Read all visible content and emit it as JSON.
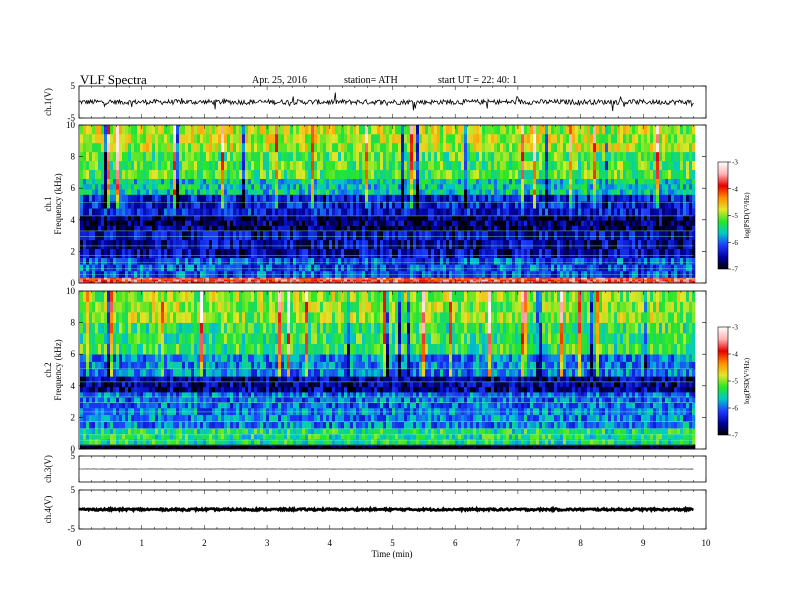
{
  "header": {
    "title": "VLF  Spectra",
    "date": "Apr. 25, 2016",
    "station": "station= ATH",
    "start": "start  UT  =    22: 40: 1"
  },
  "colors": {
    "spectrogram_scale": [
      "#000000",
      "#0000a0",
      "#1e3cff",
      "#00c8c8",
      "#28e628",
      "#e6e628",
      "#ff8c00",
      "#e60000",
      "#ffb4b4",
      "#ffffff"
    ]
  },
  "chart_data": [
    {
      "type": "line",
      "panel": "ch1-waveform",
      "ylabel": "ch.1(V)",
      "xlim": [
        0,
        10
      ],
      "ylim": [
        -5,
        5
      ],
      "yticks": [
        {
          "v": 5,
          "label": "5"
        },
        {
          "v": -5,
          "label": "-5"
        }
      ],
      "xdata_end": 9.8,
      "baseline": 0,
      "noise_amplitude": 0.8
    },
    {
      "type": "heatmap",
      "panel": "ch1-spectrogram",
      "ylabel": "ch.1\nFrequency  (kHz)",
      "xlim": [
        0,
        10
      ],
      "ylim": [
        0,
        10
      ],
      "yticks": [
        {
          "v": 0,
          "label": "0"
        },
        {
          "v": 2,
          "label": "2"
        },
        {
          "v": 4,
          "label": "4"
        },
        {
          "v": 6,
          "label": "6"
        },
        {
          "v": 8,
          "label": "8"
        },
        {
          "v": 10,
          "label": "10"
        }
      ],
      "xdata_end": 9.8,
      "colorbar": {
        "label": "log(PSD(V²/Hz)",
        "range": [
          -7,
          -3
        ],
        "ticks": [
          {
            "v": -3,
            "label": "-3"
          },
          {
            "v": -4,
            "label": "-4"
          },
          {
            "v": -5,
            "label": "-5"
          },
          {
            "v": -6,
            "label": "-6"
          },
          {
            "v": -7,
            "label": "-7"
          }
        ]
      },
      "bands_khz": [
        {
          "from": 0.0,
          "to": 0.35,
          "level": -3.8
        },
        {
          "from": 0.35,
          "to": 1.6,
          "level": -6.1
        },
        {
          "from": 1.6,
          "to": 3.3,
          "level": -6.5
        },
        {
          "from": 3.3,
          "to": 4.3,
          "level": -6.7
        },
        {
          "from": 4.3,
          "to": 5.6,
          "level": -6.3
        },
        {
          "from": 5.6,
          "to": 6.6,
          "level": -5.6
        },
        {
          "from": 6.6,
          "to": 8.3,
          "level": -5.2
        },
        {
          "from": 8.3,
          "to": 10.0,
          "level": -4.9
        }
      ]
    },
    {
      "type": "heatmap",
      "panel": "ch2-spectrogram",
      "ylabel": "ch.2\nFrequency  (kHz)",
      "xlim": [
        0,
        10
      ],
      "ylim": [
        0,
        10
      ],
      "yticks": [
        {
          "v": 0,
          "label": "0"
        },
        {
          "v": 2,
          "label": "2"
        },
        {
          "v": 4,
          "label": "4"
        },
        {
          "v": 6,
          "label": "6"
        },
        {
          "v": 8,
          "label": "8"
        },
        {
          "v": 10,
          "label": "10"
        }
      ],
      "xdata_end": 9.8,
      "colorbar": {
        "label": "log(PSD(V²/Hz)",
        "range": [
          -7,
          -3
        ],
        "ticks": [
          {
            "v": -3,
            "label": "-3"
          },
          {
            "v": -4,
            "label": "-4"
          },
          {
            "v": -5,
            "label": "-5"
          },
          {
            "v": -6,
            "label": "-6"
          },
          {
            "v": -7,
            "label": "-7"
          }
        ]
      },
      "bands_khz": [
        {
          "from": 0.0,
          "to": 0.3,
          "level": -7.0
        },
        {
          "from": 0.3,
          "to": 1.3,
          "level": -5.4
        },
        {
          "from": 1.3,
          "to": 2.6,
          "level": -5.9
        },
        {
          "from": 2.6,
          "to": 3.6,
          "level": -6.0
        },
        {
          "from": 3.6,
          "to": 4.6,
          "level": -6.6
        },
        {
          "from": 4.6,
          "to": 6.0,
          "level": -5.9
        },
        {
          "from": 6.0,
          "to": 8.0,
          "level": -5.3
        },
        {
          "from": 8.0,
          "to": 10.0,
          "level": -5.0
        }
      ]
    },
    {
      "type": "line",
      "panel": "ch3-waveform",
      "ylabel": "ch.3(V)",
      "xlim": [
        0,
        10
      ],
      "ylim": [
        -5,
        5
      ],
      "yticks": [
        {
          "v": 5,
          "label": "5"
        }
      ],
      "xdata_end": 9.8,
      "baseline": 0,
      "noise_amplitude": 0.05
    },
    {
      "type": "line",
      "panel": "ch4-waveform",
      "ylabel": "ch.4(V)",
      "xlim": [
        0,
        10
      ],
      "ylim": [
        -5,
        5
      ],
      "yticks": [
        {
          "v": 5,
          "label": "5"
        },
        {
          "v": -5,
          "label": "-5"
        }
      ],
      "xdata_end": 9.8,
      "baseline": 0,
      "noise_amplitude": 0.25
    }
  ],
  "xaxis": {
    "label": "Time  (min)",
    "ticks": [
      {
        "v": 0,
        "label": "0"
      },
      {
        "v": 1,
        "label": "1"
      },
      {
        "v": 2,
        "label": "2"
      },
      {
        "v": 3,
        "label": "3"
      },
      {
        "v": 4,
        "label": "4"
      },
      {
        "v": 5,
        "label": "5"
      },
      {
        "v": 6,
        "label": "6"
      },
      {
        "v": 7,
        "label": "7"
      },
      {
        "v": 8,
        "label": "8"
      },
      {
        "v": 9,
        "label": "9"
      },
      {
        "v": 10,
        "label": "10"
      }
    ]
  }
}
